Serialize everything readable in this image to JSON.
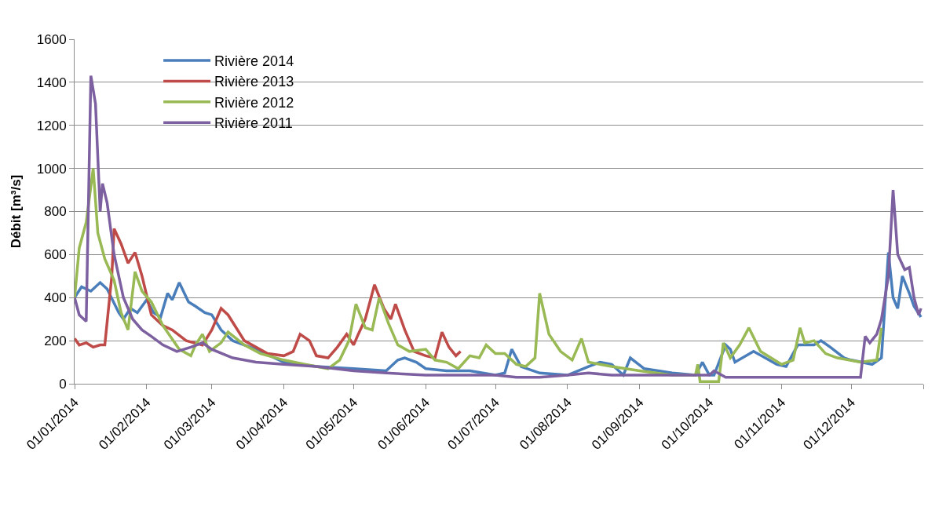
{
  "chart_data": {
    "type": "line",
    "ylabel": "Débit [m³/s]",
    "ylim": [
      0,
      1600
    ],
    "yticks": [
      0,
      200,
      400,
      600,
      800,
      1000,
      1200,
      1400,
      1600
    ],
    "xlim": [
      "2014-01-01",
      "2015-01-01"
    ],
    "xticks": [
      {
        "value": "2014-01-01",
        "label": "01/01/2014"
      },
      {
        "value": "2014-02-01",
        "label": "01/02/2014"
      },
      {
        "value": "2014-03-01",
        "label": "01/03/2014"
      },
      {
        "value": "2014-04-01",
        "label": "01/04/2014"
      },
      {
        "value": "2014-05-01",
        "label": "01/05/2014"
      },
      {
        "value": "2014-06-01",
        "label": "01/06/2014"
      },
      {
        "value": "2014-07-01",
        "label": "01/07/2014"
      },
      {
        "value": "2014-08-01",
        "label": "01/08/2014"
      },
      {
        "value": "2014-09-01",
        "label": "01/09/2014"
      },
      {
        "value": "2014-10-01",
        "label": "01/10/2014"
      },
      {
        "value": "2014-11-01",
        "label": "01/11/2014"
      },
      {
        "value": "2014-12-01",
        "label": "01/12/2014"
      },
      {
        "value": "2015-01-01",
        "label": null
      }
    ],
    "grid": "y",
    "legend": "top left",
    "marker": "none",
    "line_style": "solid",
    "series": [
      {
        "name": "Rivière 2014",
        "color": "#4a7ebb",
        "x": [
          "2014-01-01",
          "2014-01-04",
          "2014-01-08",
          "2014-01-12",
          "2014-01-15",
          "2014-01-20",
          "2014-01-22",
          "2014-01-25",
          "2014-01-28",
          "2014-02-01",
          "2014-02-04",
          "2014-02-07",
          "2014-02-10",
          "2014-02-12",
          "2014-02-15",
          "2014-02-19",
          "2014-02-22",
          "2014-02-26",
          "2014-03-01",
          "2014-03-05",
          "2014-03-10",
          "2014-03-20",
          "2014-04-01",
          "2014-04-15",
          "2014-05-01",
          "2014-05-15",
          "2014-05-20",
          "2014-05-23",
          "2014-05-28",
          "2014-06-01",
          "2014-06-10",
          "2014-06-20",
          "2014-07-01",
          "2014-07-05",
          "2014-07-08",
          "2014-07-12",
          "2014-07-20",
          "2014-08-01",
          "2014-08-10",
          "2014-08-15",
          "2014-08-20",
          "2014-08-25",
          "2014-08-28",
          "2014-09-03",
          "2014-09-15",
          "2014-09-25",
          "2014-09-28",
          "2014-10-01",
          "2014-10-03",
          "2014-10-08",
          "2014-10-10",
          "2014-10-12",
          "2014-10-20",
          "2014-10-25",
          "2014-10-30",
          "2014-11-03",
          "2014-11-08",
          "2014-11-15",
          "2014-11-18",
          "2014-11-22",
          "2014-11-28",
          "2014-12-01",
          "2014-12-10",
          "2014-12-14",
          "2014-12-17",
          "2014-12-19",
          "2014-12-21",
          "2014-12-23",
          "2014-12-26",
          "2014-12-28",
          "2014-12-31"
        ],
        "values": [
          400,
          450,
          430,
          470,
          440,
          330,
          300,
          350,
          330,
          390,
          330,
          310,
          420,
          390,
          470,
          380,
          360,
          330,
          320,
          250,
          200,
          160,
          100,
          80,
          70,
          60,
          110,
          120,
          100,
          70,
          60,
          60,
          40,
          50,
          160,
          80,
          50,
          40,
          80,
          100,
          90,
          40,
          120,
          70,
          50,
          40,
          100,
          40,
          40,
          180,
          160,
          100,
          150,
          120,
          90,
          80,
          180,
          180,
          200,
          170,
          120,
          110,
          90,
          120,
          610,
          400,
          350,
          500,
          420,
          360,
          310
        ]
      },
      {
        "name": "Rivière 2013",
        "color": "#be4b48",
        "x": [
          "2014-01-01",
          "2014-01-03",
          "2014-01-06",
          "2014-01-09",
          "2014-01-12",
          "2014-01-14",
          "2014-01-17",
          "2014-01-18",
          "2014-01-21",
          "2014-01-24",
          "2014-01-27",
          "2014-01-30",
          "2014-02-03",
          "2014-02-08",
          "2014-02-12",
          "2014-02-18",
          "2014-02-25",
          "2014-03-01",
          "2014-03-05",
          "2014-03-08",
          "2014-03-15",
          "2014-03-25",
          "2014-04-01",
          "2014-04-05",
          "2014-04-08",
          "2014-04-12",
          "2014-04-15",
          "2014-04-20",
          "2014-04-24",
          "2014-04-28",
          "2014-05-01",
          "2014-05-03",
          "2014-05-06",
          "2014-05-10",
          "2014-05-14",
          "2014-05-17",
          "2014-05-19",
          "2014-05-23",
          "2014-05-27",
          "2014-06-01",
          "2014-06-05",
          "2014-06-08",
          "2014-06-11",
          "2014-06-14",
          "2014-06-16"
        ],
        "values": [
          210,
          180,
          190,
          170,
          180,
          180,
          500,
          720,
          650,
          560,
          610,
          500,
          320,
          270,
          250,
          200,
          180,
          250,
          350,
          320,
          200,
          140,
          130,
          150,
          230,
          200,
          130,
          120,
          170,
          230,
          180,
          230,
          300,
          460,
          350,
          300,
          370,
          250,
          150,
          130,
          120,
          240,
          170,
          130,
          150
        ]
      },
      {
        "name": "Rivière 2012",
        "color": "#98b954",
        "x": [
          "2014-01-01",
          "2014-01-03",
          "2014-01-06",
          "2014-01-09",
          "2014-01-11",
          "2014-01-14",
          "2014-01-18",
          "2014-01-21",
          "2014-01-24",
          "2014-01-27",
          "2014-01-30",
          "2014-02-03",
          "2014-02-08",
          "2014-02-15",
          "2014-02-20",
          "2014-02-22",
          "2014-02-25",
          "2014-02-28",
          "2014-03-05",
          "2014-03-08",
          "2014-03-15",
          "2014-03-22",
          "2014-04-01",
          "2014-04-10",
          "2014-04-20",
          "2014-04-25",
          "2014-04-29",
          "2014-05-02",
          "2014-05-06",
          "2014-05-09",
          "2014-05-12",
          "2014-05-16",
          "2014-05-20",
          "2014-05-25",
          "2014-06-01",
          "2014-06-05",
          "2014-06-10",
          "2014-06-15",
          "2014-06-20",
          "2014-06-24",
          "2014-06-27",
          "2014-07-01",
          "2014-07-05",
          "2014-07-10",
          "2014-07-14",
          "2014-07-18",
          "2014-07-20",
          "2014-07-24",
          "2014-07-29",
          "2014-08-03",
          "2014-08-07",
          "2014-08-10",
          "2014-08-20",
          "2014-09-01",
          "2014-09-15",
          "2014-09-25",
          "2014-09-26",
          "2014-09-27",
          "2014-10-05",
          "2014-10-07",
          "2014-10-10",
          "2014-10-14",
          "2014-10-18",
          "2014-10-23",
          "2014-11-01",
          "2014-11-06",
          "2014-11-09",
          "2014-11-11",
          "2014-11-15",
          "2014-11-20",
          "2014-11-25",
          "2014-12-05",
          "2014-12-12",
          "2014-12-14"
        ],
        "values": [
          400,
          630,
          750,
          1000,
          700,
          580,
          480,
          330,
          250,
          520,
          430,
          380,
          270,
          160,
          130,
          180,
          230,
          150,
          190,
          240,
          180,
          140,
          110,
          90,
          70,
          110,
          200,
          370,
          260,
          250,
          400,
          280,
          180,
          150,
          160,
          110,
          100,
          70,
          130,
          120,
          180,
          140,
          140,
          90,
          80,
          120,
          420,
          230,
          150,
          110,
          210,
          100,
          80,
          60,
          40,
          40,
          90,
          10,
          10,
          190,
          120,
          180,
          260,
          150,
          90,
          110,
          260,
          190,
          200,
          140,
          120,
          100,
          110,
          260
        ]
      },
      {
        "name": "Rivière 2011",
        "color": "#7d60a0",
        "x": [
          "2014-01-01",
          "2014-01-03",
          "2014-01-06",
          "2014-01-08",
          "2014-01-10",
          "2014-01-12",
          "2014-01-13",
          "2014-01-15",
          "2014-01-18",
          "2014-01-22",
          "2014-01-26",
          "2014-01-30",
          "2014-02-03",
          "2014-02-08",
          "2014-02-14",
          "2014-02-20",
          "2014-02-25",
          "2014-03-01",
          "2014-03-10",
          "2014-03-20",
          "2014-04-01",
          "2014-04-15",
          "2014-05-01",
          "2014-05-15",
          "2014-06-01",
          "2014-06-15",
          "2014-07-01",
          "2014-07-10",
          "2014-07-20",
          "2014-08-01",
          "2014-08-10",
          "2014-08-20",
          "2014-09-01",
          "2014-09-15",
          "2014-10-01",
          "2014-10-03",
          "2014-10-08",
          "2014-10-15",
          "2014-11-01",
          "2014-11-15",
          "2014-12-01",
          "2014-12-05",
          "2014-12-07",
          "2014-12-09",
          "2014-12-12",
          "2014-12-14",
          "2014-12-17",
          "2014-12-19",
          "2014-12-21",
          "2014-12-24",
          "2014-12-26",
          "2014-12-28",
          "2014-12-30",
          "2014-12-31"
        ],
        "values": [
          400,
          320,
          290,
          1430,
          1300,
          800,
          930,
          840,
          600,
          400,
          300,
          250,
          220,
          180,
          150,
          170,
          190,
          160,
          120,
          100,
          90,
          80,
          60,
          50,
          40,
          40,
          40,
          30,
          30,
          40,
          50,
          40,
          40,
          40,
          40,
          60,
          30,
          30,
          30,
          30,
          30,
          30,
          220,
          190,
          230,
          300,
          500,
          900,
          600,
          530,
          540,
          400,
          320,
          350
        ]
      }
    ]
  }
}
